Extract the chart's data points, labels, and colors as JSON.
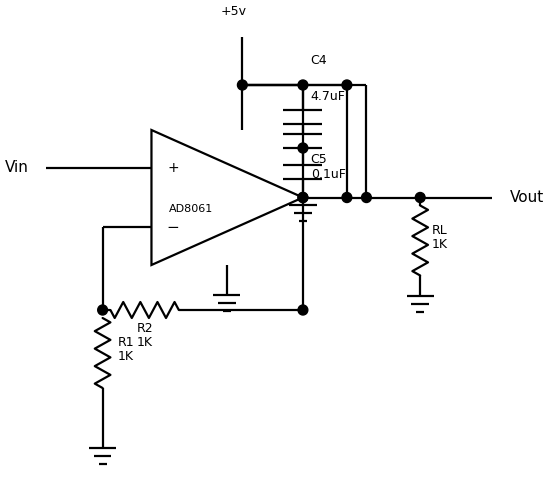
{
  "bg_color": "#ffffff",
  "line_color": "#000000",
  "line_width": 1.6,
  "fig_width": 5.5,
  "fig_height": 4.78,
  "labels": {
    "vin": "Vin",
    "vout": "Vout",
    "vcc": "+5v",
    "c4": "C4",
    "c4_val": "4.7uF",
    "c5": "C5",
    "c5_val": "0.1uF",
    "r1": "R1",
    "r1_val": "1K",
    "r2": "R2",
    "r2_val": "1K",
    "rl": "RL",
    "rl_val": "1K",
    "opamp": "AD8061"
  }
}
